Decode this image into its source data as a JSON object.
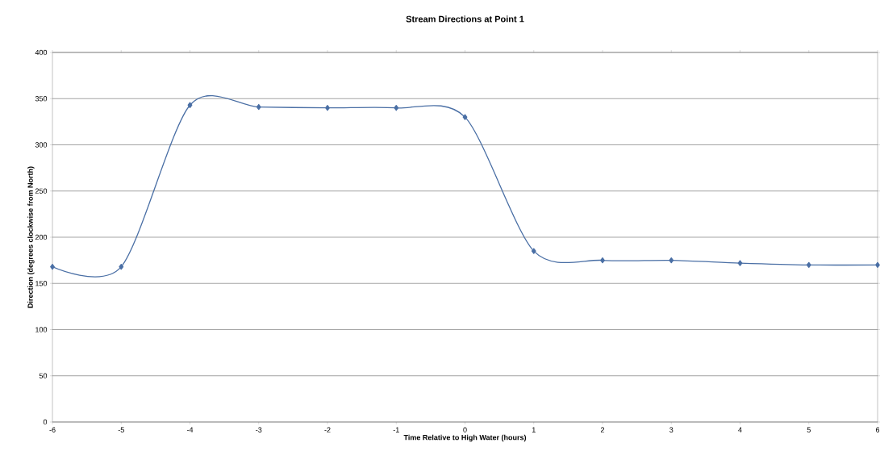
{
  "chart_data": {
    "type": "line",
    "title": "Stream Directions at Point 1",
    "xlabel": "Time Relative to High Water (hours)",
    "ylabel": "Direction (degrees clockwise from North)",
    "x": [
      -6,
      -5,
      -4,
      -3,
      -2,
      -1,
      0,
      1,
      2,
      3,
      4,
      5,
      6
    ],
    "series": [
      {
        "color": "#4a6fa5",
        "values": [
          168,
          168,
          343,
          341,
          340,
          340,
          330,
          185,
          175,
          175,
          172,
          170,
          170
        ]
      }
    ],
    "xlim": [
      -6,
      6
    ],
    "xticks": [
      -6,
      -5,
      -4,
      -3,
      -2,
      -1,
      0,
      1,
      2,
      3,
      4,
      5,
      6
    ],
    "ylim": [
      0,
      400
    ],
    "yticks": [
      0,
      50,
      100,
      150,
      200,
      250,
      300,
      350,
      400
    ],
    "grid": "y",
    "marker": "diamond",
    "line_style": "solid"
  }
}
